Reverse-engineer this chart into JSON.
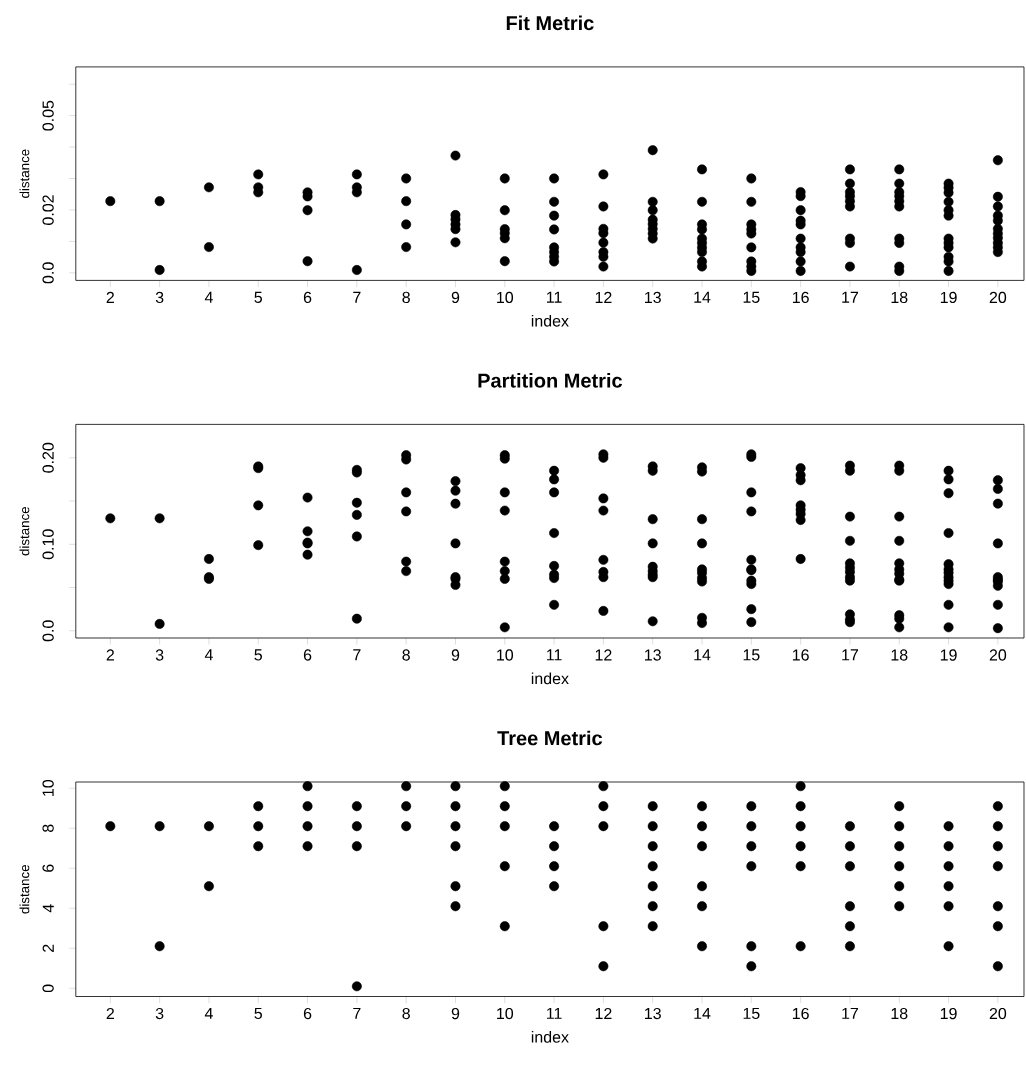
{
  "chart_data": [
    {
      "type": "scatter",
      "title": "Fit Metric",
      "xlabel": "index",
      "ylabel": "distance",
      "marker": "circle",
      "xlim": [
        1.3,
        20.53
      ],
      "ylim": [
        -0.0024,
        0.0655
      ],
      "xticks": [
        2,
        3,
        4,
        5,
        6,
        7,
        8,
        9,
        10,
        11,
        12,
        13,
        14,
        15,
        16,
        17,
        18,
        19,
        20
      ],
      "yticks": [
        {
          "value": 0,
          "label": "0.0"
        },
        {
          "value": 0.01,
          "label": null
        },
        0.02,
        {
          "value": 0.03,
          "label": null
        },
        {
          "value": 0.04,
          "label": null
        },
        0.05,
        {
          "value": 0.06,
          "label": null
        }
      ],
      "series": [
        {
          "color": "#000000",
          "x": [
            2,
            3,
            3,
            4,
            4,
            5,
            5,
            5,
            6,
            6,
            6,
            6,
            7,
            7,
            7,
            7,
            8,
            8,
            8,
            8,
            9,
            9,
            9,
            9,
            9,
            9,
            10,
            10,
            10,
            10,
            10,
            10,
            11,
            11,
            11,
            11,
            11,
            11,
            11,
            11,
            12,
            12,
            12,
            12,
            12,
            12,
            12,
            12,
            13,
            13,
            13,
            13,
            13,
            13,
            13,
            13,
            14,
            14,
            14,
            14,
            14,
            14,
            14,
            14,
            14,
            14,
            15,
            15,
            15,
            15,
            15,
            15,
            15,
            15,
            15,
            16,
            16,
            16,
            16,
            16,
            16,
            16,
            16,
            16,
            16,
            17,
            17,
            17,
            17,
            17,
            17,
            17,
            17,
            17,
            18,
            18,
            18,
            18,
            18,
            18,
            18,
            18,
            18,
            18,
            19,
            19,
            19,
            19,
            19,
            19,
            19,
            19,
            19,
            19,
            19,
            19,
            20,
            20,
            20,
            20,
            20,
            20,
            20,
            20,
            20,
            20,
            20
          ],
          "values": [
            0.0228,
            0.0228,
            0.0009,
            0.0272,
            0.0082,
            0.0313,
            0.0272,
            0.0256,
            0.0256,
            0.0243,
            0.0199,
            0.0037,
            0.0313,
            0.0272,
            0.0256,
            0.0009,
            0.03,
            0.0228,
            0.0154,
            0.0082,
            0.0373,
            0.0184,
            0.017,
            0.0154,
            0.0139,
            0.0097,
            0.03,
            0.0199,
            0.0139,
            0.0126,
            0.011,
            0.0037,
            0.03,
            0.0226,
            0.0182,
            0.0138,
            0.0081,
            0.0066,
            0.0051,
            0.0036,
            0.0313,
            0.0211,
            0.014,
            0.0126,
            0.0096,
            0.0066,
            0.0051,
            0.002,
            0.039,
            0.0226,
            0.0199,
            0.0169,
            0.0155,
            0.014,
            0.0125,
            0.0109,
            0.0329,
            0.0226,
            0.0154,
            0.0138,
            0.0109,
            0.0095,
            0.008,
            0.0066,
            0.0036,
            0.002,
            0.03,
            0.0226,
            0.0154,
            0.0138,
            0.0125,
            0.0081,
            0.0036,
            0.002,
            0.0006,
            0.0257,
            0.0244,
            0.0199,
            0.0166,
            0.0154,
            0.0109,
            0.0081,
            0.0066,
            0.0036,
            0.0006,
            0.0329,
            0.0284,
            0.0257,
            0.0244,
            0.0228,
            0.0211,
            0.0109,
            0.0095,
            0.002,
            0.0329,
            0.0284,
            0.0257,
            0.0244,
            0.0228,
            0.0211,
            0.0109,
            0.0095,
            0.002,
            0.0006,
            0.0284,
            0.0271,
            0.0255,
            0.0226,
            0.0199,
            0.0182,
            0.0109,
            0.0095,
            0.0081,
            0.0051,
            0.0036,
            0.0006,
            0.0358,
            0.0242,
            0.0211,
            0.0182,
            0.0166,
            0.014,
            0.0125,
            0.0111,
            0.0095,
            0.0081,
            0.0066
          ]
        }
      ]
    },
    {
      "type": "scatter",
      "title": "Partition Metric",
      "xlabel": "index",
      "ylabel": "distance",
      "marker": "circle",
      "xlim": [
        1.3,
        20.53
      ],
      "ylim": [
        -0.0083,
        0.2386
      ],
      "xticks": [
        2,
        3,
        4,
        5,
        6,
        7,
        8,
        9,
        10,
        11,
        12,
        13,
        14,
        15,
        16,
        17,
        18,
        19,
        20
      ],
      "yticks": [
        {
          "value": 0,
          "label": "0.0"
        },
        {
          "value": 0.05,
          "label": null
        },
        {
          "value": 0.1,
          "label": "0.10"
        },
        {
          "value": 0.15,
          "label": null
        },
        {
          "value": 0.2,
          "label": "0.20"
        }
      ],
      "series": [
        {
          "color": "#000000",
          "x": [
            2,
            3,
            3,
            4,
            4,
            4,
            5,
            5,
            5,
            5,
            6,
            6,
            6,
            6,
            6,
            7,
            7,
            7,
            7,
            7,
            7,
            8,
            8,
            8,
            8,
            8,
            8,
            9,
            9,
            9,
            9,
            9,
            9,
            9,
            10,
            10,
            10,
            10,
            10,
            10,
            10,
            10,
            11,
            11,
            11,
            11,
            11,
            11,
            11,
            11,
            12,
            12,
            12,
            12,
            12,
            12,
            12,
            12,
            13,
            13,
            13,
            13,
            13,
            13,
            13,
            13,
            13,
            14,
            14,
            14,
            14,
            14,
            14,
            14,
            14,
            14,
            14,
            15,
            15,
            15,
            15,
            15,
            15,
            15,
            15,
            15,
            15,
            15,
            16,
            16,
            16,
            16,
            16,
            16,
            16,
            16,
            17,
            17,
            17,
            17,
            17,
            17,
            17,
            17,
            17,
            17,
            17,
            17,
            18,
            18,
            18,
            18,
            18,
            18,
            18,
            18,
            18,
            18,
            18,
            18,
            19,
            19,
            19,
            19,
            19,
            19,
            19,
            19,
            19,
            19,
            19,
            19,
            20,
            20,
            20,
            20,
            20,
            20,
            20,
            20,
            20,
            20
          ],
          "values": [
            0.13,
            0.13,
            0.008,
            0.083,
            0.062,
            0.06,
            0.19,
            0.188,
            0.145,
            0.099,
            0.154,
            0.115,
            0.102,
            0.101,
            0.088,
            0.186,
            0.183,
            0.148,
            0.134,
            0.109,
            0.014,
            0.203,
            0.198,
            0.16,
            0.138,
            0.08,
            0.069,
            0.173,
            0.162,
            0.147,
            0.101,
            0.062,
            0.06,
            0.053,
            0.203,
            0.199,
            0.16,
            0.139,
            0.08,
            0.069,
            0.06,
            0.004,
            0.185,
            0.175,
            0.16,
            0.113,
            0.075,
            0.065,
            0.061,
            0.03,
            0.204,
            0.2,
            0.153,
            0.139,
            0.082,
            0.068,
            0.062,
            0.023,
            0.19,
            0.185,
            0.129,
            0.101,
            0.074,
            0.069,
            0.065,
            0.062,
            0.011,
            0.189,
            0.184,
            0.129,
            0.101,
            0.071,
            0.067,
            0.061,
            0.057,
            0.015,
            0.009,
            0.204,
            0.201,
            0.16,
            0.138,
            0.082,
            0.071,
            0.07,
            0.058,
            0.054,
            0.025,
            0.01,
            0.188,
            0.18,
            0.174,
            0.145,
            0.14,
            0.135,
            0.128,
            0.083,
            0.191,
            0.185,
            0.132,
            0.104,
            0.078,
            0.073,
            0.068,
            0.062,
            0.058,
            0.019,
            0.013,
            0.01,
            0.191,
            0.185,
            0.132,
            0.104,
            0.078,
            0.071,
            0.066,
            0.059,
            0.058,
            0.018,
            0.014,
            0.004,
            0.185,
            0.175,
            0.159,
            0.113,
            0.077,
            0.071,
            0.067,
            0.062,
            0.058,
            0.054,
            0.03,
            0.004,
            0.174,
            0.164,
            0.147,
            0.101,
            0.062,
            0.059,
            0.057,
            0.052,
            0.03,
            0.003
          ]
        }
      ]
    },
    {
      "type": "scatter",
      "title": "Tree Metric",
      "xlabel": "index",
      "ylabel": "distance",
      "marker": "circle",
      "xlim": [
        1.3,
        20.53
      ],
      "ylim": [
        -0.41,
        10.31
      ],
      "xticks": [
        2,
        3,
        4,
        5,
        6,
        7,
        8,
        9,
        10,
        11,
        12,
        13,
        14,
        15,
        16,
        17,
        18,
        19,
        20
      ],
      "yticks": [
        0,
        2,
        4,
        6,
        8,
        10
      ],
      "series": [
        {
          "color": "#000000",
          "x": [
            2,
            3,
            3,
            4,
            4,
            5,
            5,
            5,
            6,
            6,
            6,
            6,
            7,
            7,
            7,
            7,
            8,
            8,
            8,
            9,
            9,
            9,
            9,
            9,
            9,
            10,
            10,
            10,
            10,
            10,
            11,
            11,
            11,
            11,
            12,
            12,
            12,
            12,
            12,
            13,
            13,
            13,
            13,
            13,
            13,
            13,
            14,
            14,
            14,
            14,
            14,
            14,
            15,
            15,
            15,
            15,
            15,
            15,
            16,
            16,
            16,
            16,
            16,
            16,
            17,
            17,
            17,
            17,
            17,
            17,
            18,
            18,
            18,
            18,
            18,
            18,
            19,
            19,
            19,
            19,
            19,
            19,
            20,
            20,
            20,
            20,
            20,
            20,
            20
          ],
          "values": [
            8.1,
            8.1,
            2.1,
            8.1,
            5.1,
            9.1,
            8.1,
            7.1,
            10.1,
            9.1,
            8.1,
            7.1,
            9.1,
            8.1,
            7.1,
            0.1,
            10.1,
            9.1,
            8.1,
            10.1,
            9.1,
            8.1,
            7.1,
            5.1,
            4.1,
            10.1,
            9.1,
            8.1,
            6.1,
            3.1,
            8.1,
            7.1,
            6.1,
            5.1,
            10.1,
            9.1,
            8.1,
            3.1,
            1.1,
            9.1,
            8.1,
            7.1,
            6.1,
            5.1,
            4.1,
            3.1,
            9.1,
            8.1,
            7.1,
            5.1,
            4.1,
            2.1,
            9.1,
            8.1,
            7.1,
            6.1,
            2.1,
            1.1,
            10.1,
            9.1,
            8.1,
            7.1,
            6.1,
            2.1,
            8.1,
            7.1,
            6.1,
            4.1,
            3.1,
            2.1,
            9.1,
            8.1,
            7.1,
            6.1,
            5.1,
            4.1,
            8.1,
            7.1,
            6.1,
            5.1,
            4.1,
            2.1,
            9.1,
            8.1,
            7.1,
            6.1,
            4.1,
            3.1,
            1.1
          ]
        }
      ]
    }
  ]
}
